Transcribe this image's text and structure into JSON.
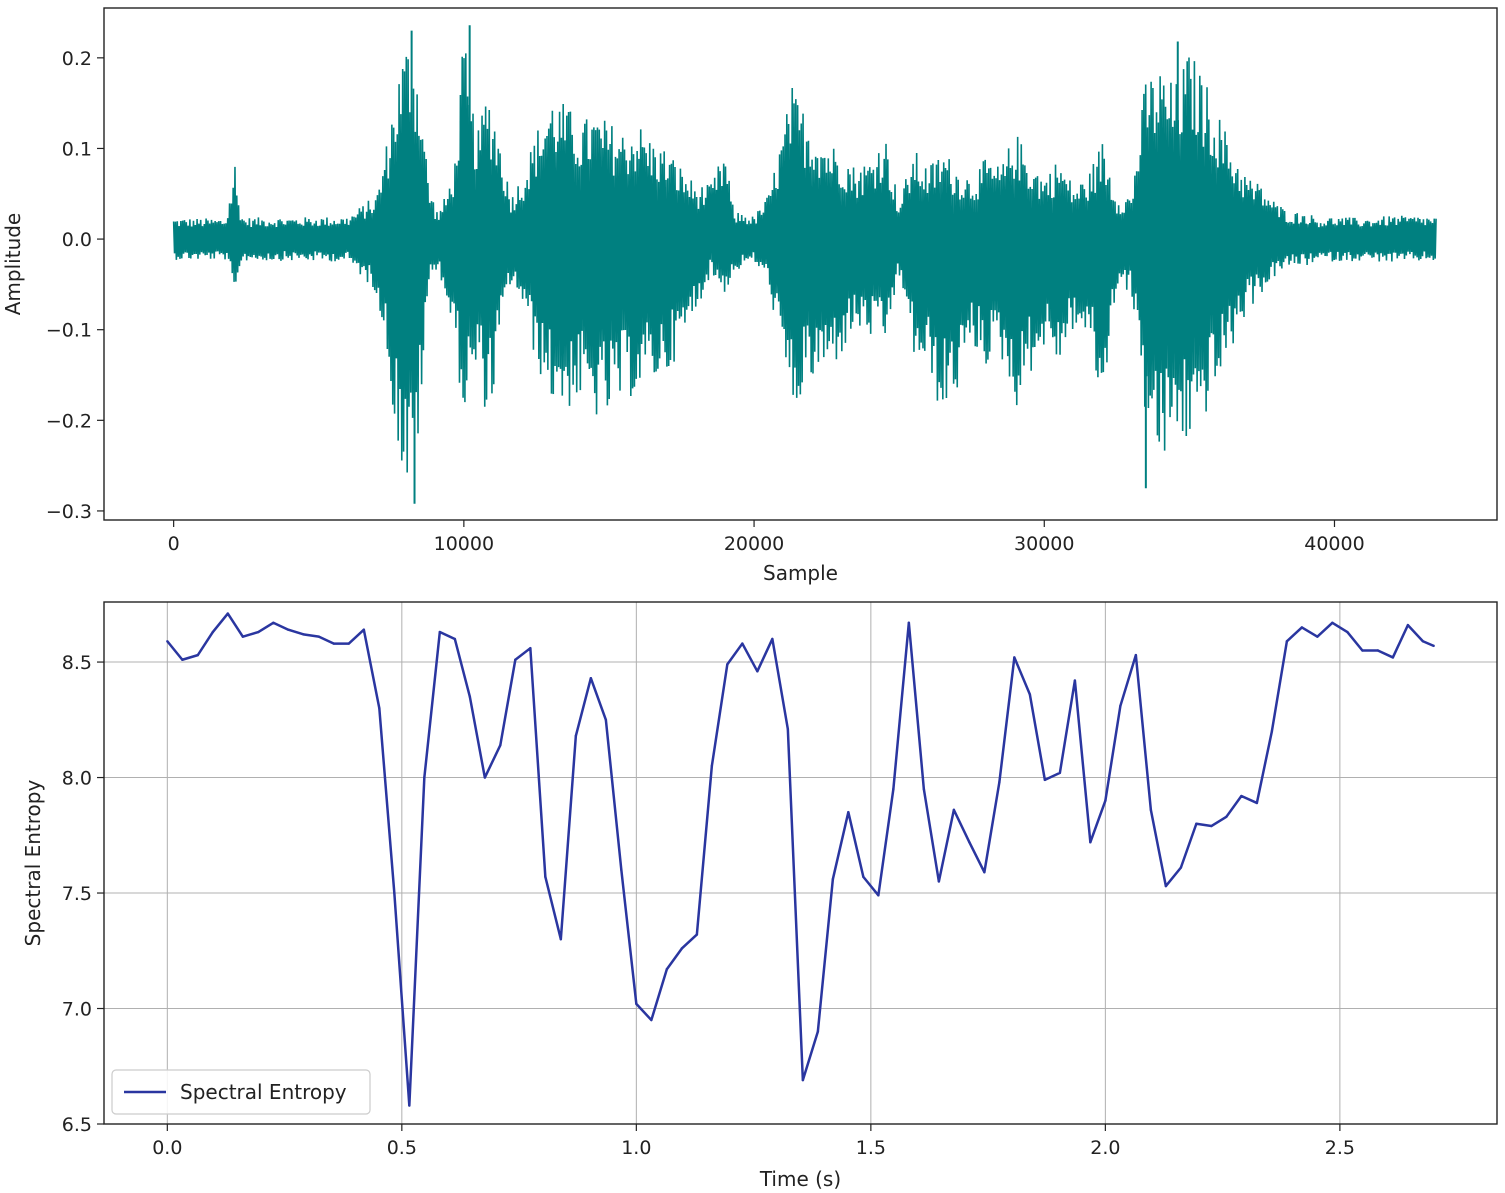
{
  "chart_data": [
    {
      "type": "line",
      "title": "",
      "xlabel": "Sample",
      "ylabel": "Amplitude",
      "xlim": [
        -2400,
        45600
      ],
      "ylim": [
        -0.31,
        0.255
      ],
      "xticks": [
        0,
        10000,
        20000,
        30000,
        40000
      ],
      "yticks": [
        -0.3,
        -0.2,
        -0.1,
        0.0,
        0.1,
        0.2
      ],
      "xtick_labels": [
        "0",
        "10000",
        "20000",
        "30000",
        "40000"
      ],
      "ytick_labels": [
        "−0.3",
        "−0.2",
        "−0.1",
        "0.0",
        "0.1",
        "0.2"
      ],
      "grid": false,
      "color": "#008080",
      "x_range": [
        0,
        43500
      ],
      "envelope": {
        "x": [
          0,
          1800,
          2000,
          2100,
          2200,
          2400,
          4000,
          6000,
          7000,
          7300,
          7600,
          7900,
          8200,
          8500,
          8800,
          9100,
          9400,
          9700,
          10000,
          10200,
          10500,
          10800,
          11000,
          11200,
          11600,
          12000,
          12500,
          13000,
          13500,
          14000,
          14500,
          15000,
          15500,
          16000,
          16500,
          17000,
          17500,
          18000,
          18500,
          19000,
          19300,
          19600,
          20000,
          20500,
          21000,
          21300,
          21600,
          22000,
          22500,
          23000,
          23500,
          24000,
          24500,
          25000,
          25500,
          26000,
          26500,
          27000,
          27500,
          28000,
          28500,
          29000,
          29500,
          30000,
          30500,
          31000,
          31500,
          32000,
          32500,
          33000,
          33500,
          34000,
          34500,
          35000,
          35500,
          36000,
          36500,
          37000,
          37500,
          38000,
          38500,
          39000,
          39500,
          40000,
          41000,
          42000,
          43500
        ],
        "upper": [
          0.023,
          0.023,
          0.06,
          0.093,
          0.05,
          0.024,
          0.024,
          0.025,
          0.05,
          0.1,
          0.16,
          0.21,
          0.23,
          0.17,
          0.06,
          0.03,
          0.05,
          0.09,
          0.23,
          0.16,
          0.12,
          0.17,
          0.15,
          0.12,
          0.05,
          0.07,
          0.12,
          0.16,
          0.15,
          0.13,
          0.14,
          0.13,
          0.12,
          0.13,
          0.11,
          0.1,
          0.08,
          0.06,
          0.06,
          0.1,
          0.03,
          0.03,
          0.025,
          0.05,
          0.12,
          0.17,
          0.15,
          0.13,
          0.11,
          0.1,
          0.08,
          0.09,
          0.12,
          0.04,
          0.1,
          0.08,
          0.1,
          0.08,
          0.07,
          0.09,
          0.08,
          0.12,
          0.09,
          0.07,
          0.09,
          0.06,
          0.07,
          0.11,
          0.05,
          0.05,
          0.18,
          0.19,
          0.17,
          0.21,
          0.18,
          0.14,
          0.1,
          0.07,
          0.06,
          0.04,
          0.03,
          0.03,
          0.023,
          0.025,
          0.023,
          0.026,
          0.025
        ],
        "lower": [
          -0.023,
          -0.023,
          -0.05,
          -0.078,
          -0.04,
          -0.024,
          -0.024,
          -0.025,
          -0.06,
          -0.12,
          -0.2,
          -0.27,
          -0.29,
          -0.2,
          -0.05,
          -0.03,
          -0.07,
          -0.12,
          -0.2,
          -0.17,
          -0.15,
          -0.2,
          -0.18,
          -0.12,
          -0.05,
          -0.07,
          -0.14,
          -0.18,
          -0.19,
          -0.18,
          -0.2,
          -0.2,
          -0.18,
          -0.17,
          -0.16,
          -0.15,
          -0.12,
          -0.08,
          -0.04,
          -0.06,
          -0.04,
          -0.03,
          -0.025,
          -0.05,
          -0.14,
          -0.2,
          -0.18,
          -0.16,
          -0.15,
          -0.13,
          -0.1,
          -0.11,
          -0.12,
          -0.04,
          -0.13,
          -0.15,
          -0.2,
          -0.17,
          -0.12,
          -0.14,
          -0.13,
          -0.19,
          -0.15,
          -0.12,
          -0.14,
          -0.1,
          -0.11,
          -0.19,
          -0.05,
          -0.06,
          -0.2,
          -0.26,
          -0.22,
          -0.23,
          -0.2,
          -0.16,
          -0.12,
          -0.08,
          -0.06,
          -0.04,
          -0.03,
          -0.03,
          -0.024,
          -0.025,
          -0.024,
          -0.026,
          -0.024
        ]
      },
      "peak_markers": [
        {
          "x": 8200,
          "y": 0.23
        },
        {
          "x": 8300,
          "y": -0.292
        },
        {
          "x": 10200,
          "y": 0.236
        },
        {
          "x": 34600,
          "y": 0.218
        },
        {
          "x": 33500,
          "y": -0.275
        }
      ]
    },
    {
      "type": "line",
      "title": "",
      "xlabel": "Time (s)",
      "ylabel": "Spectral Entropy",
      "xlim": [
        -0.135,
        2.835
      ],
      "ylim": [
        6.5,
        8.76
      ],
      "xticks": [
        0.0,
        0.5,
        1.0,
        1.5,
        2.0,
        2.5
      ],
      "yticks": [
        6.5,
        7.0,
        7.5,
        8.0,
        8.5
      ],
      "xtick_labels": [
        "0.0",
        "0.5",
        "1.0",
        "1.5",
        "2.0",
        "2.5"
      ],
      "ytick_labels": [
        "6.5",
        "7.0",
        "7.5",
        "8.0",
        "8.5"
      ],
      "grid": true,
      "legend": {
        "position": "lower-left",
        "entries": [
          "Spectral Entropy"
        ]
      },
      "series": [
        {
          "name": "Spectral Entropy",
          "color": "#2a36a0",
          "x": [
            0.0,
            0.032,
            0.065,
            0.097,
            0.129,
            0.161,
            0.194,
            0.226,
            0.258,
            0.29,
            0.323,
            0.355,
            0.387,
            0.419,
            0.452,
            0.484,
            0.516,
            0.548,
            0.581,
            0.613,
            0.645,
            0.677,
            0.71,
            0.742,
            0.774,
            0.806,
            0.839,
            0.871,
            0.903,
            0.935,
            0.968,
            1.0,
            1.032,
            1.065,
            1.097,
            1.129,
            1.161,
            1.194,
            1.226,
            1.258,
            1.29,
            1.323,
            1.355,
            1.387,
            1.419,
            1.452,
            1.484,
            1.516,
            1.548,
            1.581,
            1.613,
            1.645,
            1.677,
            1.71,
            1.742,
            1.774,
            1.806,
            1.839,
            1.871,
            1.903,
            1.935,
            1.968,
            2.0,
            2.032,
            2.065,
            2.097,
            2.129,
            2.161,
            2.194,
            2.226,
            2.258,
            2.29,
            2.323,
            2.355,
            2.387,
            2.419,
            2.452,
            2.484,
            2.516,
            2.548,
            2.581,
            2.613,
            2.645,
            2.677,
            2.7
          ],
          "values": [
            8.59,
            8.51,
            8.53,
            8.63,
            8.71,
            8.61,
            8.63,
            8.67,
            8.64,
            8.62,
            8.61,
            8.58,
            8.58,
            8.64,
            8.3,
            7.5,
            6.58,
            8.0,
            8.63,
            8.6,
            8.35,
            8.0,
            8.14,
            8.51,
            8.56,
            7.57,
            7.3,
            8.18,
            8.43,
            8.25,
            7.6,
            7.02,
            6.95,
            7.17,
            7.26,
            7.32,
            8.05,
            8.49,
            8.58,
            8.46,
            8.6,
            8.21,
            6.69,
            6.9,
            7.56,
            7.85,
            7.57,
            7.49,
            7.95,
            8.67,
            7.95,
            7.55,
            7.86,
            7.72,
            7.59,
            7.98,
            8.52,
            8.36,
            7.99,
            8.02,
            8.42,
            7.72,
            7.9,
            8.31,
            8.53,
            7.86,
            7.53,
            7.61,
            7.8,
            7.79,
            7.83,
            7.92,
            7.89,
            8.2,
            8.59,
            8.65,
            8.61,
            8.67,
            8.63,
            8.55,
            8.55,
            8.52,
            8.66,
            8.59,
            8.57
          ]
        }
      ]
    }
  ]
}
